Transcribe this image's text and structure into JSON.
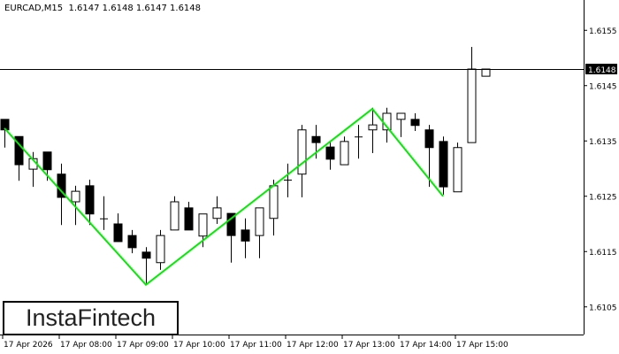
{
  "header": {
    "symbol": "EURCAD,M15",
    "ohlc": "1.6147 1.6148 1.6147 1.6148"
  },
  "logo": "InstaFintech",
  "colors": {
    "pattern_line": "#00ee00",
    "bull_body": "#ffffff",
    "bear_body": "#000000",
    "price_label_bg": "#000000"
  },
  "chart_data": {
    "type": "candlestick",
    "title": "EURCAD,M15",
    "timeframe": "M15",
    "x_tick_labels": [
      "17 Apr 2026",
      "17 Apr 08:00",
      "17 Apr 09:00",
      "17 Apr 10:00",
      "17 Apr 11:00",
      "17 Apr 12:00",
      "17 Apr 13:00",
      "17 Apr 14:00",
      "17 Apr 15:00"
    ],
    "y_tick_labels": [
      "1.6155",
      "1.6145",
      "1.6135",
      "1.6125",
      "1.6115",
      "1.6105"
    ],
    "ylim": [
      1.6101,
      1.6161
    ],
    "current_price": "1.6148",
    "candles_ohlc": [
      [
        1.61389,
        1.61389,
        1.61338,
        1.6137
      ],
      [
        1.61358,
        1.61358,
        1.61278,
        1.61307
      ],
      [
        1.61299,
        1.6133,
        1.61267,
        1.61318
      ],
      [
        1.6133,
        1.6133,
        1.61278,
        1.61298
      ],
      [
        1.6129,
        1.61309,
        1.61198,
        1.61248
      ],
      [
        1.6124,
        1.61269,
        1.61198,
        1.61259
      ],
      [
        1.61269,
        1.6128,
        1.61198,
        1.61218
      ],
      [
        1.6121,
        1.6125,
        1.61189,
        1.6121
      ],
      [
        1.612,
        1.61219,
        1.61168,
        1.61168
      ],
      [
        1.61179,
        1.61189,
        1.61147,
        1.61157
      ],
      [
        1.61149,
        1.61158,
        1.6109,
        1.61138
      ],
      [
        1.6113,
        1.61189,
        1.61117,
        1.61179
      ],
      [
        1.61189,
        1.6125,
        1.61189,
        1.6124
      ],
      [
        1.61229,
        1.6124,
        1.61189,
        1.61189
      ],
      [
        1.61178,
        1.61218,
        1.61158,
        1.61218
      ],
      [
        1.6121,
        1.6125,
        1.612,
        1.61229
      ],
      [
        1.61219,
        1.61219,
        1.6113,
        1.61179
      ],
      [
        1.61189,
        1.6121,
        1.61138,
        1.61169
      ],
      [
        1.61179,
        1.61229,
        1.61138,
        1.61229
      ],
      [
        1.6121,
        1.6128,
        1.61179,
        1.61269
      ],
      [
        1.6128,
        1.61309,
        1.61248,
        1.6128
      ],
      [
        1.6129,
        1.61379,
        1.61248,
        1.6137
      ],
      [
        1.61358,
        1.61379,
        1.61318,
        1.61347
      ],
      [
        1.61339,
        1.61349,
        1.61298,
        1.61317
      ],
      [
        1.61307,
        1.61358,
        1.61307,
        1.61349
      ],
      [
        1.61358,
        1.61379,
        1.61318,
        1.61358
      ],
      [
        1.6137,
        1.6141,
        1.61328,
        1.61379
      ],
      [
        1.6137,
        1.6141,
        1.61347,
        1.614
      ],
      [
        1.61389,
        1.614,
        1.61357,
        1.614
      ],
      [
        1.61389,
        1.614,
        1.61368,
        1.61378
      ],
      [
        1.6137,
        1.61379,
        1.61267,
        1.61338
      ],
      [
        1.61349,
        1.61358,
        1.61253,
        1.61267
      ],
      [
        1.61258,
        1.61347,
        1.61258,
        1.61338
      ],
      [
        1.61347,
        1.6152,
        1.61347,
        1.6148
      ],
      [
        1.61467,
        1.6148,
        1.61467,
        1.6148
      ]
    ],
    "pattern_line": [
      {
        "candle_index": 0,
        "price": 1.61373
      },
      {
        "candle_index": 10,
        "price": 1.6109
      },
      {
        "candle_index": 26,
        "price": 1.61408
      },
      {
        "candle_index": 31,
        "price": 1.6125
      }
    ]
  }
}
